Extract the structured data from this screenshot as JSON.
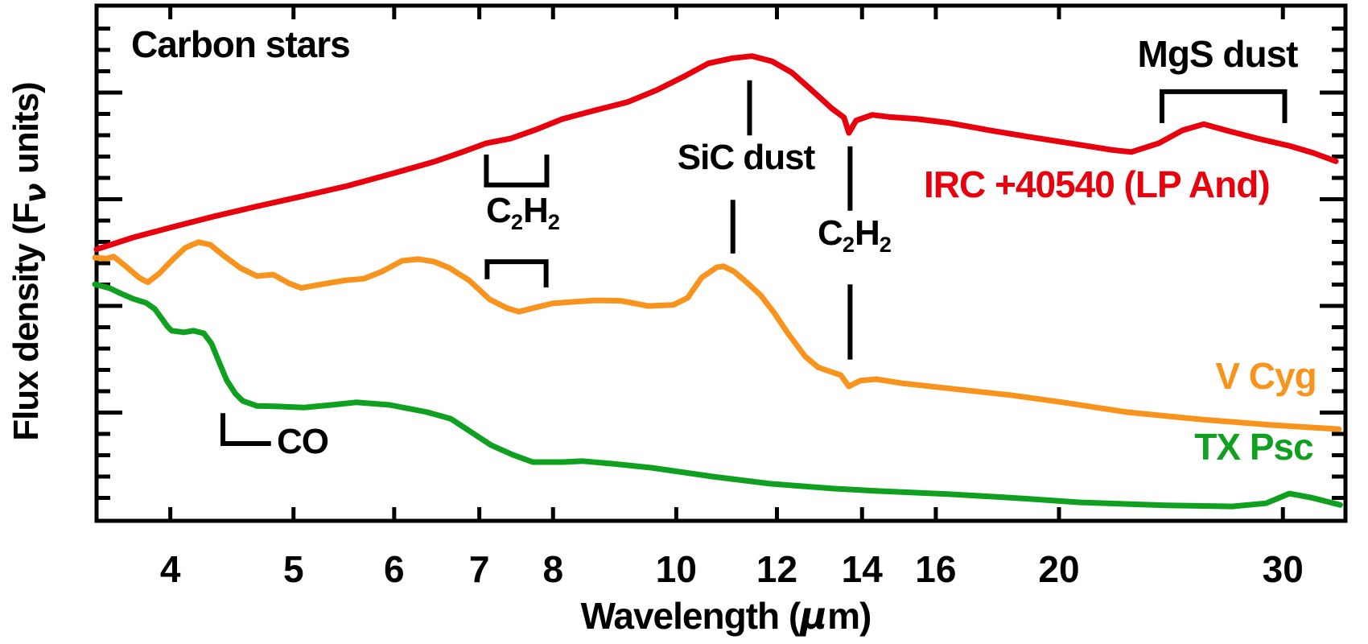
{
  "figure": {
    "background": "#ffffff",
    "frame_color": "#000000"
  },
  "labels": {
    "title": "Carbon stars",
    "sic_dust": "SiC dust",
    "mgs_dust": "MgS dust",
    "co": "CO",
    "c2h2": {
      "b1": "C",
      "s1": "2",
      "b2": "H",
      "s2": "2"
    },
    "xlabel_pre": "Wavelength (",
    "xlabel_mu": "μ",
    "xlabel_post": "m)",
    "ylabel_pre": "Flux density (F",
    "ylabel_sub": "ν",
    "ylabel_post": " units)"
  },
  "chart_data": {
    "type": "line",
    "title": "Carbon stars",
    "xlabel": "Wavelength (μm)",
    "ylabel": "Flux density (Fν units)",
    "x_scale": "log",
    "x_range": [
      3.5,
      33.6
    ],
    "x_ticks": [
      4,
      5,
      6,
      7,
      8,
      10,
      12,
      14,
      16,
      20,
      30
    ],
    "y_range": [
      0,
      100
    ],
    "y_units": "arbitrary flux units (relative scale)",
    "grid": false,
    "legend_position": "inline labels beside curves",
    "series": [
      {
        "name": "IRC +40540 (LP And)",
        "color": "#E8000D",
        "points": [
          [
            3.5,
            52.7
          ],
          [
            3.74,
            55.0
          ],
          [
            4.0,
            56.9
          ],
          [
            4.33,
            59.1
          ],
          [
            4.69,
            61.1
          ],
          [
            5.08,
            63.0
          ],
          [
            5.51,
            65.0
          ],
          [
            6.0,
            67.5
          ],
          [
            6.45,
            69.7
          ],
          [
            6.79,
            71.6
          ],
          [
            7.09,
            73.3
          ],
          [
            7.41,
            74.2
          ],
          [
            7.75,
            75.9
          ],
          [
            8.14,
            78.0
          ],
          [
            8.64,
            79.7
          ],
          [
            9.16,
            81.3
          ],
          [
            9.65,
            83.6
          ],
          [
            10.15,
            86.3
          ],
          [
            10.6,
            88.8
          ],
          [
            11.07,
            89.8
          ],
          [
            11.47,
            90.2
          ],
          [
            11.89,
            89.2
          ],
          [
            12.33,
            87.0
          ],
          [
            12.78,
            83.6
          ],
          [
            13.26,
            80.0
          ],
          [
            13.55,
            78.3
          ],
          [
            13.67,
            75.3
          ],
          [
            13.85,
            77.7
          ],
          [
            14.26,
            78.8
          ],
          [
            14.69,
            78.4
          ],
          [
            15.47,
            78.0
          ],
          [
            16.42,
            77.2
          ],
          [
            17.65,
            75.8
          ],
          [
            18.98,
            74.5
          ],
          [
            20.4,
            73.3
          ],
          [
            22.0,
            72.0
          ],
          [
            22.8,
            71.6
          ],
          [
            23.96,
            73.3
          ],
          [
            25.01,
            75.8
          ],
          [
            26.0,
            77.0
          ],
          [
            27.06,
            75.8
          ],
          [
            28.66,
            74.2
          ],
          [
            30.35,
            72.8
          ],
          [
            31.7,
            71.4
          ],
          [
            33.02,
            69.8
          ]
        ]
      },
      {
        "name": "V Cyg",
        "color": "#F8941D",
        "points": [
          [
            3.49,
            51.1
          ],
          [
            3.56,
            50.9
          ],
          [
            3.61,
            51.3
          ],
          [
            3.69,
            49.4
          ],
          [
            3.78,
            47.2
          ],
          [
            3.84,
            46.3
          ],
          [
            3.92,
            48.0
          ],
          [
            4.02,
            50.8
          ],
          [
            4.11,
            53.0
          ],
          [
            4.21,
            54.1
          ],
          [
            4.3,
            53.6
          ],
          [
            4.4,
            51.6
          ],
          [
            4.54,
            49.1
          ],
          [
            4.68,
            47.5
          ],
          [
            4.82,
            47.8
          ],
          [
            4.96,
            46.1
          ],
          [
            5.07,
            45.2
          ],
          [
            5.26,
            45.9
          ],
          [
            5.5,
            46.7
          ],
          [
            5.68,
            47.0
          ],
          [
            5.87,
            48.4
          ],
          [
            6.09,
            50.5
          ],
          [
            6.27,
            50.8
          ],
          [
            6.45,
            50.3
          ],
          [
            6.63,
            49.1
          ],
          [
            6.87,
            46.7
          ],
          [
            7.13,
            43.0
          ],
          [
            7.36,
            41.3
          ],
          [
            7.52,
            40.6
          ],
          [
            7.72,
            41.3
          ],
          [
            7.99,
            42.2
          ],
          [
            8.29,
            42.5
          ],
          [
            8.64,
            42.8
          ],
          [
            9.05,
            42.7
          ],
          [
            9.5,
            41.7
          ],
          [
            9.95,
            41.9
          ],
          [
            10.21,
            43.3
          ],
          [
            10.47,
            47.2
          ],
          [
            10.76,
            49.2
          ],
          [
            10.89,
            49.4
          ],
          [
            11.1,
            48.4
          ],
          [
            11.36,
            46.3
          ],
          [
            11.65,
            43.8
          ],
          [
            11.93,
            40.5
          ],
          [
            12.25,
            36.3
          ],
          [
            12.63,
            31.9
          ],
          [
            12.93,
            29.8
          ],
          [
            13.24,
            28.9
          ],
          [
            13.47,
            28.3
          ],
          [
            13.67,
            26.1
          ],
          [
            13.95,
            27.2
          ],
          [
            14.36,
            27.5
          ],
          [
            15.05,
            26.7
          ],
          [
            16.54,
            25.6
          ],
          [
            18.32,
            24.4
          ],
          [
            20.14,
            23.0
          ],
          [
            22.62,
            21.1
          ],
          [
            25.8,
            19.7
          ],
          [
            29.41,
            18.6
          ],
          [
            33.2,
            17.8
          ]
        ]
      },
      {
        "name": "TX Psc",
        "color": "#10A020",
        "points": [
          [
            3.49,
            45.9
          ],
          [
            3.58,
            45.2
          ],
          [
            3.66,
            44.1
          ],
          [
            3.74,
            43.1
          ],
          [
            3.83,
            42.3
          ],
          [
            3.89,
            41.1
          ],
          [
            3.94,
            39.2
          ],
          [
            3.98,
            37.7
          ],
          [
            4.01,
            36.9
          ],
          [
            4.1,
            36.6
          ],
          [
            4.17,
            36.9
          ],
          [
            4.25,
            36.4
          ],
          [
            4.31,
            34.4
          ],
          [
            4.37,
            30.8
          ],
          [
            4.43,
            27.3
          ],
          [
            4.5,
            24.7
          ],
          [
            4.56,
            23.3
          ],
          [
            4.68,
            22.3
          ],
          [
            4.86,
            22.2
          ],
          [
            5.1,
            22.0
          ],
          [
            5.36,
            22.5
          ],
          [
            5.6,
            23.0
          ],
          [
            5.95,
            22.5
          ],
          [
            6.37,
            21.1
          ],
          [
            6.65,
            19.8
          ],
          [
            6.92,
            17.0
          ],
          [
            7.15,
            14.7
          ],
          [
            7.44,
            12.8
          ],
          [
            7.71,
            11.4
          ],
          [
            8.14,
            11.4
          ],
          [
            8.44,
            11.6
          ],
          [
            8.9,
            11.1
          ],
          [
            9.57,
            10.3
          ],
          [
            10.68,
            8.6
          ],
          [
            11.85,
            7.2
          ],
          [
            13.24,
            6.3
          ],
          [
            14.38,
            5.8
          ],
          [
            16.35,
            5.2
          ],
          [
            18.32,
            4.5
          ],
          [
            20.73,
            3.6
          ],
          [
            24.29,
            3.0
          ],
          [
            27.36,
            2.8
          ],
          [
            29.1,
            3.4
          ],
          [
            30.35,
            5.3
          ],
          [
            31.59,
            4.5
          ],
          [
            33.28,
            3.1
          ]
        ]
      }
    ],
    "features": [
      {
        "label": "SiC dust marker (upper, IRC +40540)",
        "type": "vline",
        "x": 11.42,
        "y1": 85.5,
        "y2": 74.8
      },
      {
        "label": "SiC dust marker (lower, V Cyg)",
        "type": "vline",
        "x": 11.08,
        "y1": 62.3,
        "y2": 51.9
      },
      {
        "label": "C2H2 13.7um marker (upper, IRC +40540)",
        "type": "vline",
        "x": 13.7,
        "y1": 72.7,
        "y2": 60.2
      },
      {
        "label": "C2H2 13.7um marker (lower, V Cyg)",
        "type": "vline",
        "x": 13.7,
        "y1": 45.9,
        "y2": 31.3
      },
      {
        "label": "C2H2 7.5um band (IRC +40540)",
        "type": "bracket_up",
        "x1": 7.09,
        "x2": 7.91,
        "yTop": 71.1,
        "yBase": 65.2
      },
      {
        "label": "C2H2 7.5um band (V Cyg)",
        "type": "bracket_down",
        "x1": 7.1,
        "x2": 7.9,
        "yBase": 50.3,
        "legL": 46.9,
        "legR": 45.3
      },
      {
        "label": "CO band (TX Psc)",
        "type": "corner",
        "x1": 4.4,
        "x2": 4.8,
        "yTop": 20.9,
        "yBase": 15.0
      },
      {
        "label": "MgS dust band (IRC +40540)",
        "type": "bracket_down",
        "x1": 24.1,
        "x2": 30.1,
        "yBase": 83.3,
        "legL": 77.2,
        "legR": 77.2
      }
    ]
  }
}
